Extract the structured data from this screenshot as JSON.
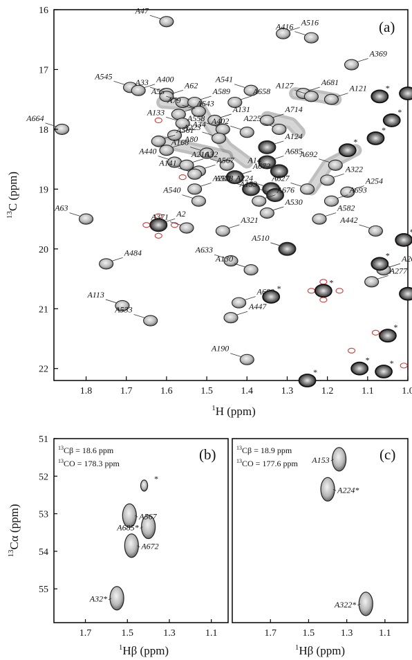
{
  "chart_data": [
    {
      "id": "a",
      "type": "scatter",
      "panel_label": "(a)",
      "xlabel_sup": "1",
      "xlabel_main": "H (ppm)",
      "ylabel_sup": "13",
      "ylabel_main": "C (ppm)",
      "xlim": [
        1.88,
        1.0
      ],
      "ylim": [
        16,
        22.2
      ],
      "xticks": [
        1.8,
        1.7,
        1.6,
        1.5,
        1.4,
        1.3,
        1.2,
        1.1,
        1.0
      ],
      "xtick_labels": [
        "1.8",
        "1.7",
        "1.6",
        "1.5",
        "1.4",
        "1.3",
        "1.2",
        "1.1",
        "1.0"
      ],
      "yticks": [
        16,
        17,
        18,
        19,
        20,
        21,
        22
      ],
      "ytick_labels": [
        "16",
        "17",
        "18",
        "19",
        "20",
        "21",
        "22"
      ],
      "peaks": [
        {
          "label": "A47",
          "h": 1.6,
          "c": 16.2
        },
        {
          "label": "A516",
          "h": 1.31,
          "c": 16.4
        },
        {
          "label": "A416",
          "h": 1.24,
          "c": 16.47
        },
        {
          "label": "A369",
          "h": 1.14,
          "c": 16.92
        },
        {
          "label": "A545",
          "h": 1.69,
          "c": 17.3
        },
        {
          "label": "A400",
          "h": 1.67,
          "c": 17.35
        },
        {
          "label": "A33",
          "h": 1.6,
          "c": 17.4
        },
        {
          "label": "A62",
          "h": 1.6,
          "c": 17.45
        },
        {
          "label": "A55",
          "h": 1.56,
          "c": 17.55
        },
        {
          "label": "A589",
          "h": 1.53,
          "c": 17.55
        },
        {
          "label": "A79",
          "h": 1.52,
          "c": 17.7
        },
        {
          "label": "A658",
          "h": 1.43,
          "c": 17.55
        },
        {
          "label": "A541",
          "h": 1.39,
          "c": 17.35
        },
        {
          "label": "A681",
          "h": 1.26,
          "c": 17.4
        },
        {
          "label": "A127",
          "h": 1.24,
          "c": 17.45
        },
        {
          "label": "A121",
          "h": 1.19,
          "c": 17.5
        },
        {
          "label": "A664",
          "h": 1.86,
          "c": 18.0
        },
        {
          "label": "A643",
          "h": 1.57,
          "c": 17.75
        },
        {
          "label": "A133",
          "h": 1.56,
          "c": 17.9
        },
        {
          "label": "A131",
          "h": 1.48,
          "c": 17.85
        },
        {
          "label": "A558",
          "h": 1.46,
          "c": 18.0
        },
        {
          "label": "A714",
          "h": 1.35,
          "c": 17.85
        },
        {
          "label": "A225",
          "h": 1.32,
          "c": 18.0
        },
        {
          "label": "A34",
          "h": 1.58,
          "c": 18.1
        },
        {
          "label": "A223",
          "h": 1.47,
          "c": 18.15
        },
        {
          "label": "A561",
          "h": 1.62,
          "c": 18.2
        },
        {
          "label": "A402",
          "h": 1.4,
          "c": 18.05
        },
        {
          "label": "A80",
          "h": 1.6,
          "c": 18.35
        },
        {
          "label": "A168",
          "h": 1.5,
          "c": 18.4
        },
        {
          "label": "A124",
          "h": 1.35,
          "c": 18.3
        },
        {
          "label": "A440",
          "h": 1.58,
          "c": 18.55
        },
        {
          "label": "A32",
          "h": 1.55,
          "c": 18.6
        },
        {
          "label": "A216",
          "h": 1.45,
          "c": 18.6
        },
        {
          "label": "A685",
          "h": 1.35,
          "c": 18.55
        },
        {
          "label": "A692",
          "h": 1.18,
          "c": 18.6
        },
        {
          "label": "A567",
          "h": 1.52,
          "c": 18.7
        },
        {
          "label": "A141",
          "h": 1.53,
          "c": 18.75
        },
        {
          "label": "A672",
          "h": 1.43,
          "c": 18.8
        },
        {
          "label": "A14",
          "h": 1.32,
          "c": 18.7
        },
        {
          "label": "A322",
          "h": 1.2,
          "c": 18.85
        },
        {
          "label": "A224",
          "h": 1.34,
          "c": 19.0
        },
        {
          "label": "A280",
          "h": 1.53,
          "c": 19.0
        },
        {
          "label": "A528",
          "h": 1.39,
          "c": 19.0
        },
        {
          "label": "A254",
          "h": 1.15,
          "c": 19.05
        },
        {
          "label": "A627",
          "h": 1.25,
          "c": 19.0
        },
        {
          "label": "A676",
          "h": 1.37,
          "c": 19.2
        },
        {
          "label": "A153",
          "h": 1.33,
          "c": 19.1
        },
        {
          "label": "A693",
          "h": 1.19,
          "c": 19.2
        },
        {
          "label": "A540",
          "h": 1.52,
          "c": 19.2
        },
        {
          "label": "A530",
          "h": 1.35,
          "c": 19.4
        },
        {
          "label": "A63",
          "h": 1.8,
          "c": 19.5
        },
        {
          "label": "A582",
          "h": 1.22,
          "c": 19.5
        },
        {
          "label": "A442",
          "h": 1.08,
          "c": 19.7
        },
        {
          "label": "A2",
          "h": 1.62,
          "c": 19.6
        },
        {
          "label": "A371",
          "h": 1.55,
          "c": 19.65
        },
        {
          "label": "A321",
          "h": 1.46,
          "c": 19.7
        },
        {
          "label": "A510",
          "h": 1.3,
          "c": 20.0
        },
        {
          "label": "A484",
          "h": 1.75,
          "c": 20.25
        },
        {
          "label": "A633",
          "h": 1.44,
          "c": 20.2
        },
        {
          "label": "A263",
          "h": 1.06,
          "c": 20.35
        },
        {
          "label": "A130",
          "h": 1.39,
          "c": 20.35
        },
        {
          "label": "A277",
          "h": 1.09,
          "c": 20.55
        },
        {
          "label": "A113",
          "h": 1.71,
          "c": 20.95
        },
        {
          "label": "A689",
          "h": 1.42,
          "c": 20.9
        },
        {
          "label": "A533",
          "h": 1.64,
          "c": 21.2
        },
        {
          "label": "A447",
          "h": 1.44,
          "c": 21.15
        },
        {
          "label": "A190",
          "h": 1.4,
          "c": 21.85
        }
      ],
      "star_count": 14
    },
    {
      "id": "b",
      "type": "scatter",
      "panel_label": "(b)",
      "cond1": "Cβ = 18.6 ppm",
      "cond1_sup": "13",
      "cond2": "CO = 178.3 ppm",
      "cond2_sup": "13",
      "xlabel_sup": "1",
      "xlabel_main": "Hβ (ppm)",
      "ylabel_sup": "13",
      "ylabel_main": "Cα (ppm)",
      "xlim": [
        1.85,
        1.02
      ],
      "ylim": [
        51,
        55.9
      ],
      "xticks": [
        1.7,
        1.5,
        1.3,
        1.1
      ],
      "xtick_labels": [
        "1.7",
        "1.5",
        "1.3",
        "1.1"
      ],
      "yticks": [
        51,
        52,
        53,
        54,
        55
      ],
      "ytick_labels": [
        "51",
        "52",
        "53",
        "54",
        "55"
      ],
      "peaks": [
        {
          "label": "*",
          "h": 1.42,
          "c": 52.25
        },
        {
          "label": "A567",
          "h": 1.49,
          "c": 53.05
        },
        {
          "label": "A685*",
          "h": 1.4,
          "c": 53.35
        },
        {
          "label": "A672",
          "h": 1.48,
          "c": 53.85
        },
        {
          "label": "A32*",
          "h": 1.55,
          "c": 55.25
        }
      ]
    },
    {
      "id": "c",
      "type": "scatter",
      "panel_label": "(c)",
      "cond1": "Cβ = 18.9 ppm",
      "cond1_sup": "13",
      "cond2": "CO = 177.6 ppm",
      "cond2_sup": "13",
      "xlabel_sup": "1",
      "xlabel_main": "Hβ (ppm)",
      "xlim": [
        1.9,
        0.98
      ],
      "ylim": [
        51,
        55.9
      ],
      "xticks": [
        1.7,
        1.5,
        1.3,
        1.1
      ],
      "xtick_labels": [
        "1.7",
        "1.5",
        "1.3",
        "1.1"
      ],
      "peaks": [
        {
          "label": "A153",
          "h": 1.34,
          "c": 51.55
        },
        {
          "label": "A224*",
          "h": 1.4,
          "c": 52.35
        },
        {
          "label": "A322*",
          "h": 1.2,
          "c": 55.4
        }
      ]
    }
  ]
}
